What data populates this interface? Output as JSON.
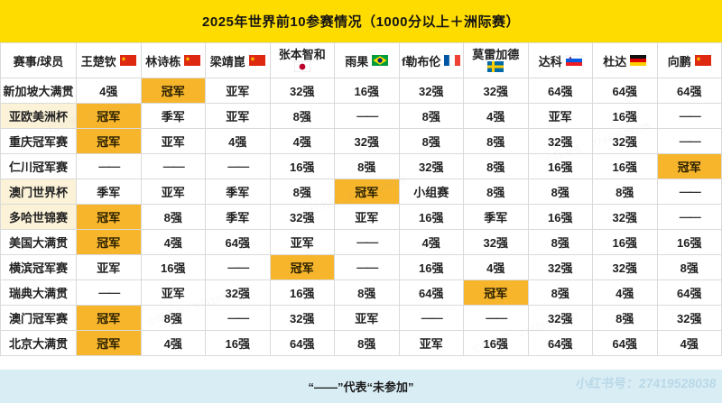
{
  "title": "2025年世界前10参赛情况（1000分以上＋洲际赛）",
  "chart_data": {
    "type": "table",
    "title": "2025年世界前10参赛情况（1000分以上＋洲际赛）",
    "corner_label": "赛事/球员",
    "columns": [
      {
        "name": "王楚钦",
        "flag": "cn",
        "flag_below": false
      },
      {
        "name": "林诗栋",
        "flag": "cn",
        "flag_below": false
      },
      {
        "name": "梁靖崑",
        "flag": "cn",
        "flag_below": false
      },
      {
        "name": "张本智和",
        "flag": "jp",
        "flag_below": true
      },
      {
        "name": "雨果",
        "flag": "br",
        "flag_below": false
      },
      {
        "name": "f勒布伦",
        "flag": "fr",
        "flag_below": false
      },
      {
        "name": "莫雷加德",
        "flag": "se",
        "flag_below": true
      },
      {
        "name": "达科",
        "flag": "si",
        "flag_below": false
      },
      {
        "name": "杜达",
        "flag": "de",
        "flag_below": false
      },
      {
        "name": "向鹏",
        "flag": "cn",
        "flag_below": false
      }
    ],
    "rows": [
      {
        "event": "新加坡大满贯",
        "event_highlight": false,
        "results": [
          "4强",
          "冠军",
          "亚军",
          "32强",
          "16强",
          "32强",
          "32强",
          "64强",
          "64强",
          "64强"
        ]
      },
      {
        "event": "亚欧美洲杯",
        "event_highlight": true,
        "results": [
          "冠军",
          "季军",
          "亚军",
          "8强",
          "——",
          "8强",
          "4强",
          "亚军",
          "16强",
          "——"
        ]
      },
      {
        "event": "重庆冠军赛",
        "event_highlight": false,
        "results": [
          "冠军",
          "亚军",
          "4强",
          "4强",
          "32强",
          "8强",
          "8强",
          "32强",
          "32强",
          "——"
        ]
      },
      {
        "event": "仁川冠军赛",
        "event_highlight": false,
        "results": [
          "——",
          "——",
          "——",
          "16强",
          "8强",
          "32强",
          "8强",
          "16强",
          "16强",
          "冠军"
        ]
      },
      {
        "event": "澳门世界杯",
        "event_highlight": true,
        "results": [
          "季军",
          "亚军",
          "季军",
          "8强",
          "冠军",
          "小组赛",
          "8强",
          "8强",
          "8强",
          "——"
        ]
      },
      {
        "event": "多哈世锦赛",
        "event_highlight": true,
        "results": [
          "冠军",
          "8强",
          "季军",
          "32强",
          "亚军",
          "16强",
          "季军",
          "16强",
          "32强",
          "——"
        ]
      },
      {
        "event": "美国大满贯",
        "event_highlight": false,
        "results": [
          "冠军",
          "4强",
          "64强",
          "亚军",
          "——",
          "4强",
          "32强",
          "8强",
          "16强",
          "16强"
        ]
      },
      {
        "event": "横滨冠军赛",
        "event_highlight": false,
        "results": [
          "亚军",
          "16强",
          "——",
          "冠军",
          "——",
          "16强",
          "4强",
          "32强",
          "32强",
          "8强"
        ]
      },
      {
        "event": "瑞典大满贯",
        "event_highlight": false,
        "results": [
          "——",
          "亚军",
          "32强",
          "16强",
          "8强",
          "64强",
          "冠军",
          "8强",
          "4强",
          "64强"
        ]
      },
      {
        "event": "澳门冠军赛",
        "event_highlight": false,
        "results": [
          "冠军",
          "8强",
          "——",
          "32强",
          "亚军",
          "——",
          "——",
          "32强",
          "8强",
          "32强"
        ]
      },
      {
        "event": "北京大满贯",
        "event_highlight": false,
        "results": [
          "冠军",
          "4强",
          "16强",
          "64强",
          "8强",
          "亚军",
          "16强",
          "64强",
          "64强",
          "4强"
        ]
      }
    ],
    "champion_value": "冠军",
    "dash_value": "——"
  },
  "footer": {
    "note": "“——”代表“未参加”"
  },
  "watermark": "小红书号：27419528038",
  "colors": {
    "title_bg": "#FFDC00",
    "champion_bg": "#F7B52C",
    "event_highlight_bg": "#FBF2D8",
    "footer_bg": "#D9EDF5",
    "grid_line": "#DADADA"
  }
}
